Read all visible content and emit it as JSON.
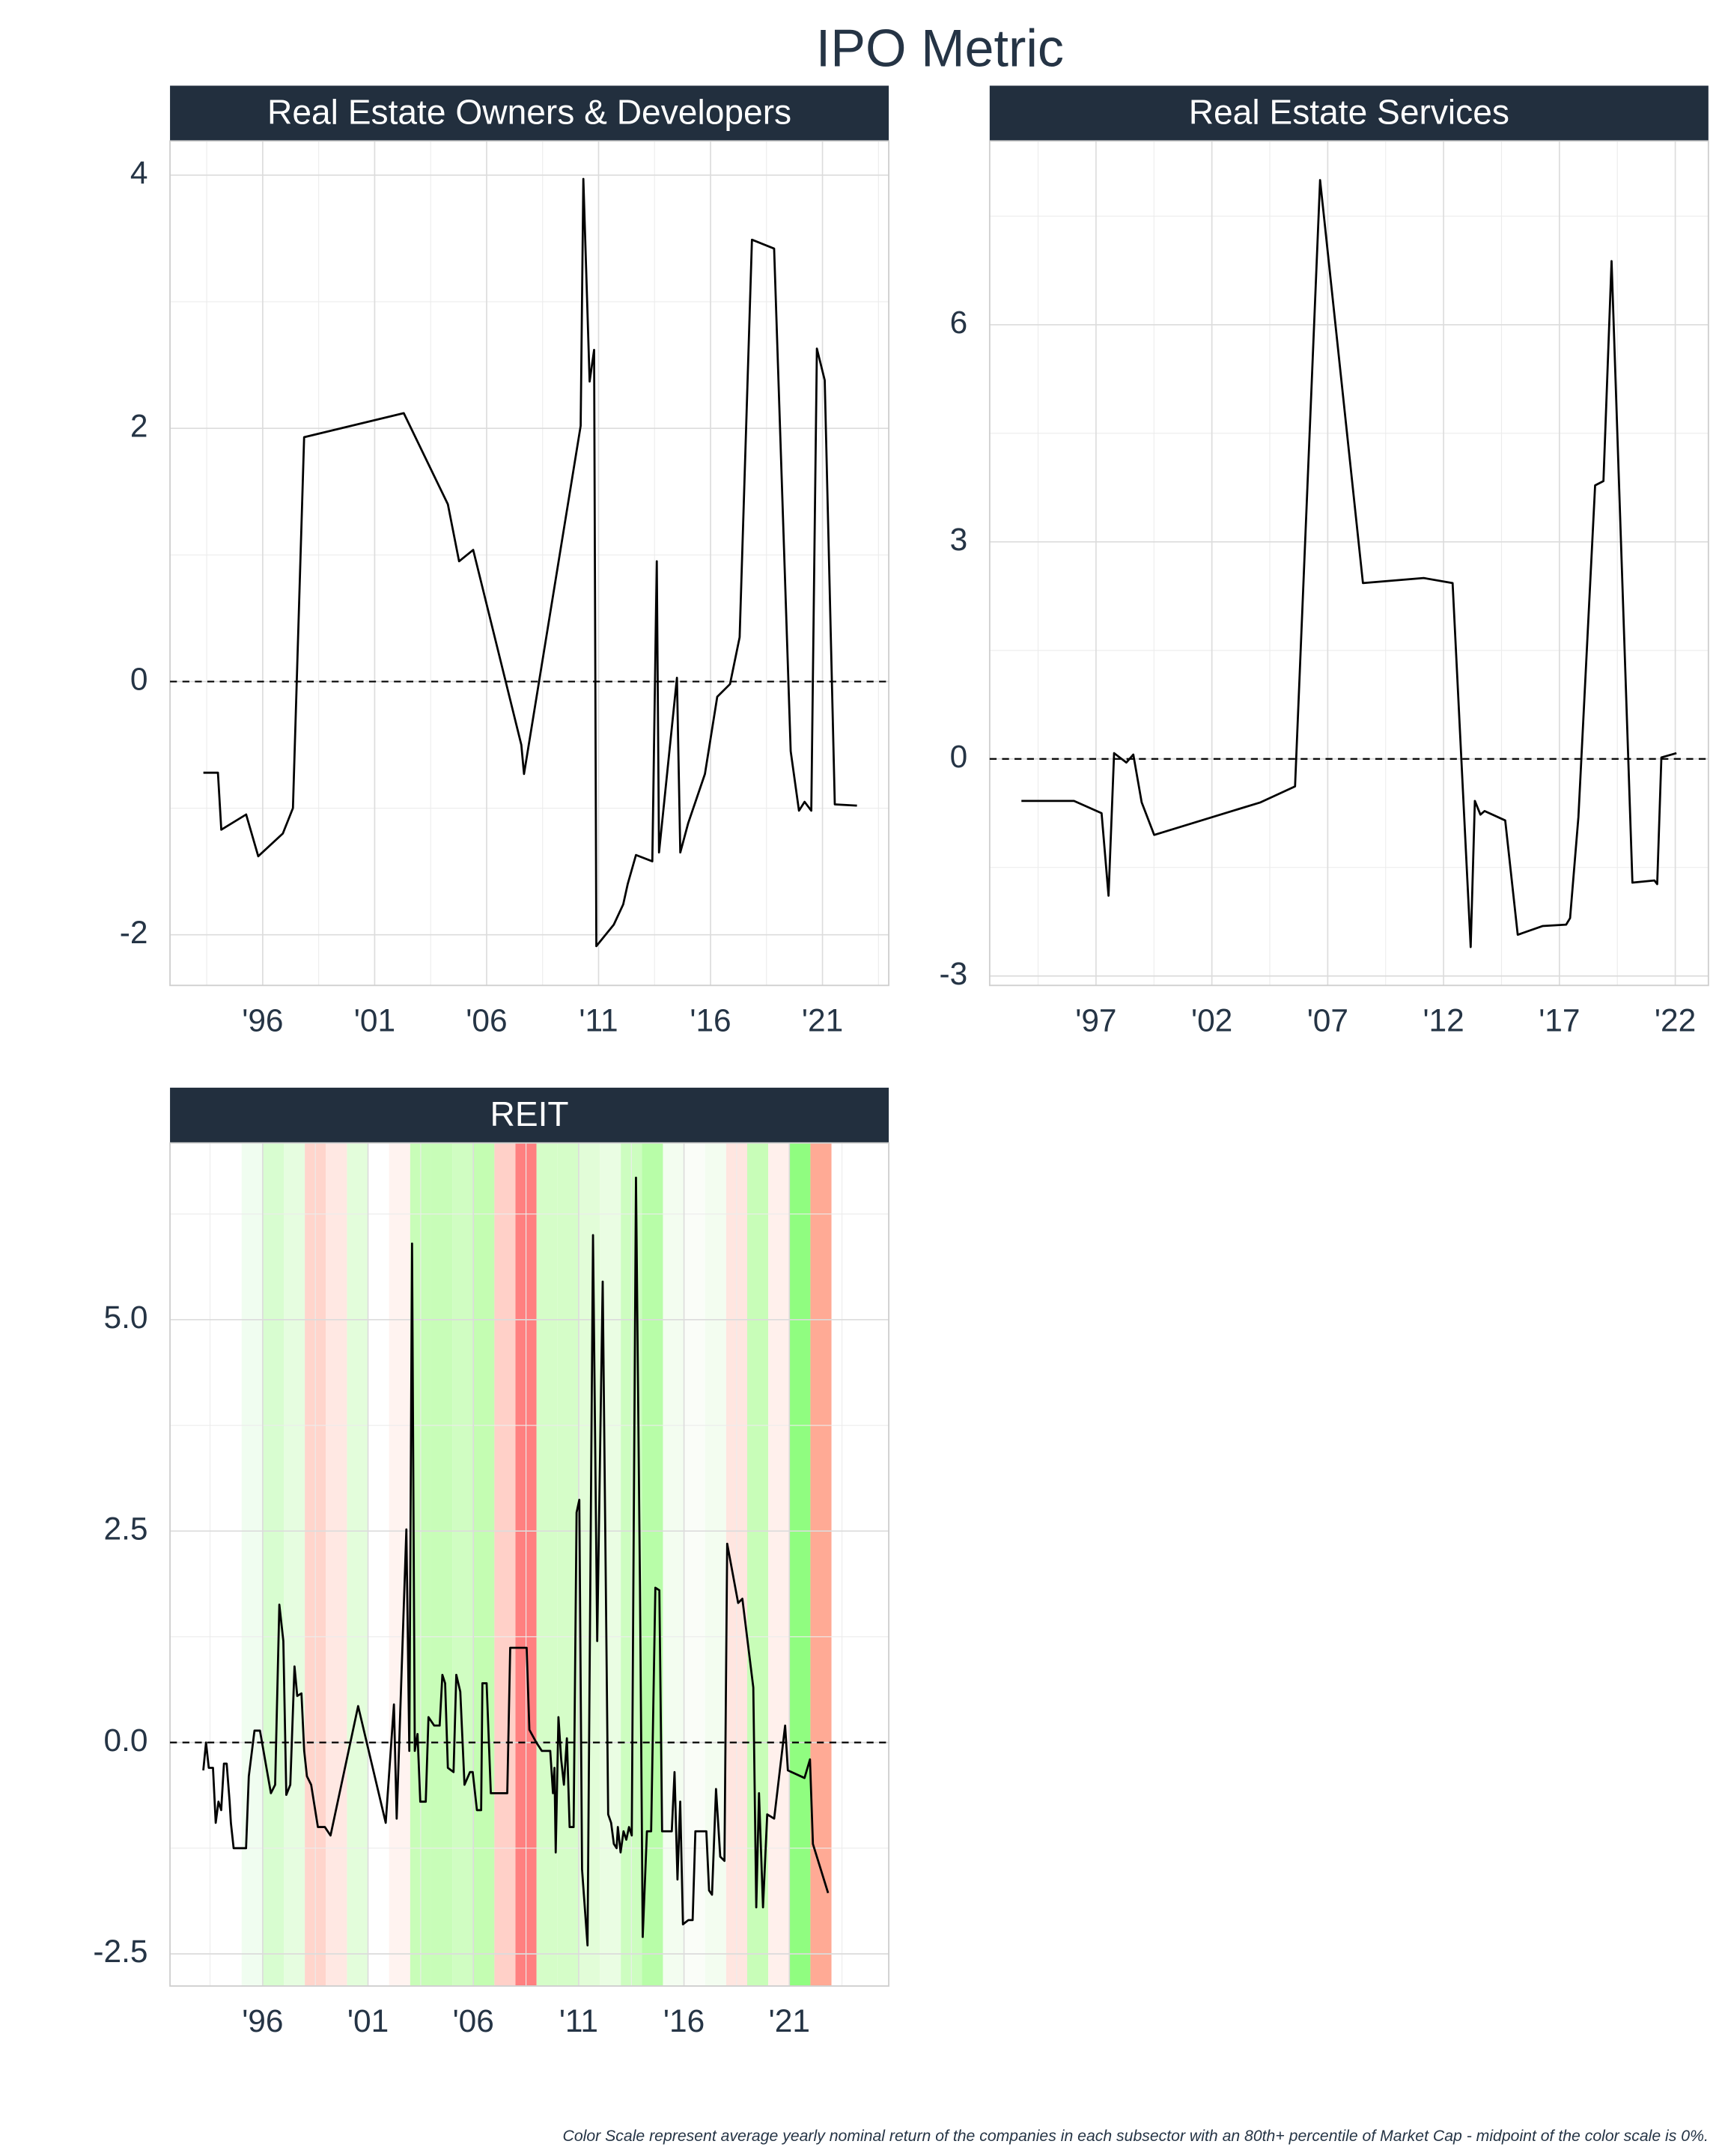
{
  "title": "IPO Metric",
  "caption": "Color Scale represent average yearly nominal return of the companies in each subsector with an 80th+ percentile of Market Cap - midpoint of the color scale is 0%.",
  "chart_data": [
    {
      "type": "line",
      "title": "Real Estate Owners & Developers",
      "color": "#000000",
      "hline": 0,
      "grid": true,
      "xlim": [
        1991.86,
        2023.96
      ],
      "ylim": [
        -2.4,
        4.27
      ],
      "xticks": [
        {
          "value": 1996,
          "label": "'96"
        },
        {
          "value": 2001,
          "label": "'01"
        },
        {
          "value": 2006,
          "label": "'06"
        },
        {
          "value": 2011,
          "label": "'11"
        },
        {
          "value": 2016,
          "label": "'16"
        },
        {
          "value": 2021,
          "label": "'21"
        }
      ],
      "xminor": [
        1993.5,
        1998.5,
        2003.5,
        2008.5,
        2013.5,
        2018.5,
        2023.5
      ],
      "yticks": [
        -2,
        0,
        2,
        4
      ],
      "yminor": [
        -1,
        1,
        3
      ],
      "x": [
        1993.35,
        1994.0,
        1994.15,
        1995.26,
        1995.8,
        1996.9,
        1997.35,
        1997.85,
        2002.3,
        2004.27,
        2004.77,
        2005.4,
        2007.55,
        2007.67,
        2010.2,
        2010.32,
        2010.6,
        2010.8,
        2010.9,
        2011.68,
        2012.1,
        2012.3,
        2012.67,
        2013.4,
        2013.6,
        2013.7,
        2014.5,
        2014.65,
        2015.0,
        2015.75,
        2016.3,
        2016.87,
        2017.3,
        2017.85,
        2018.84,
        2019.58,
        2019.95,
        2020.2,
        2020.5,
        2020.75,
        2021.1,
        2021.55,
        2022.54
      ],
      "values": [
        -0.72,
        -0.72,
        -1.17,
        -1.05,
        -1.38,
        -1.2,
        -1.0,
        1.93,
        2.12,
        1.4,
        0.95,
        1.04,
        -0.5,
        -0.73,
        2.02,
        3.97,
        2.37,
        2.62,
        -2.09,
        -1.92,
        -1.76,
        -1.6,
        -1.37,
        -1.42,
        0.95,
        -1.35,
        0.03,
        -1.35,
        -1.12,
        -0.73,
        -0.12,
        -0.02,
        0.35,
        3.49,
        3.42,
        -0.55,
        -1.02,
        -0.95,
        -1.02,
        2.63,
        2.38,
        -0.97,
        -0.98
      ]
    },
    {
      "type": "line",
      "title": "Real Estate Services",
      "color": "#000000",
      "hline": 0,
      "grid": true,
      "xlim": [
        1992.41,
        2023.43
      ],
      "ylim": [
        -3.13,
        8.54
      ],
      "xticks": [
        {
          "value": 1997,
          "label": "'97"
        },
        {
          "value": 2002,
          "label": "'02"
        },
        {
          "value": 2007,
          "label": "'07"
        },
        {
          "value": 2012,
          "label": "'12"
        },
        {
          "value": 2017,
          "label": "'17"
        },
        {
          "value": 2022,
          "label": "'22"
        }
      ],
      "xminor": [
        1994.5,
        1999.5,
        2004.5,
        2009.5,
        2014.5,
        2019.5
      ],
      "yticks": [
        -3,
        0,
        3,
        6
      ],
      "yminor": [
        -1.5,
        1.5,
        4.5,
        7.5
      ],
      "x": [
        1993.78,
        1996.05,
        1997.24,
        1997.54,
        1997.78,
        1998.31,
        1998.61,
        1998.97,
        1999.51,
        2004.1,
        2005.59,
        2006.67,
        2008.52,
        2011.14,
        2012.39,
        2013.17,
        2013.35,
        2013.59,
        2013.77,
        2014.66,
        2015.2,
        2016.27,
        2017.29,
        2017.46,
        2017.82,
        2018.54,
        2018.9,
        2019.25,
        2020.15,
        2021.1,
        2021.22,
        2021.4,
        2022.05
      ],
      "values": [
        -0.58,
        -0.58,
        -0.75,
        -1.89,
        0.08,
        -0.05,
        0.06,
        -0.6,
        -1.05,
        -0.6,
        -0.38,
        8.0,
        2.43,
        2.5,
        2.43,
        -2.6,
        -0.58,
        -0.77,
        -0.72,
        -0.85,
        -2.43,
        -2.31,
        -2.29,
        -2.2,
        -0.8,
        3.78,
        3.84,
        6.88,
        -1.71,
        -1.68,
        -1.73,
        0.02,
        0.08
      ]
    },
    {
      "type": "line",
      "title": "REIT",
      "color": "#000000",
      "hline": 0,
      "grid": true,
      "xlim": [
        1991.6,
        2025.72
      ],
      "ylim": [
        -2.88,
        7.09
      ],
      "xticks": [
        {
          "value": 1996,
          "label": "'96"
        },
        {
          "value": 2001,
          "label": "'01"
        },
        {
          "value": 2006,
          "label": "'06"
        },
        {
          "value": 2011,
          "label": "'11"
        },
        {
          "value": 2016,
          "label": "'16"
        },
        {
          "value": 2021,
          "label": "'21"
        }
      ],
      "xminor": [
        1993.5,
        1998.5,
        2003.5,
        2008.5,
        2013.5,
        2018.5,
        2023.5
      ],
      "yticks": [
        -2.5,
        {
          "value": 0,
          "label": "0.0"
        },
        2.5,
        {
          "value": 5,
          "label": "5.0"
        }
      ],
      "yminor": [
        -1.25,
        1.25,
        3.75,
        6.25
      ],
      "bands": [
        {
          "start": 1995,
          "end": 1996,
          "color": "#f0fdf0"
        },
        {
          "start": 1996,
          "end": 1997,
          "color": "#d8fdd0"
        },
        {
          "start": 1997,
          "end": 1998,
          "color": "#e6fde0"
        },
        {
          "start": 1998,
          "end": 1999,
          "color": "#ffd5cc"
        },
        {
          "start": 1999,
          "end": 2000,
          "color": "#ffe8e3"
        },
        {
          "start": 2000,
          "end": 2001,
          "color": "#e3fddb"
        },
        {
          "start": 2002,
          "end": 2003,
          "color": "#fff3f0"
        },
        {
          "start": 2003,
          "end": 2004,
          "color": "#c8fdb8"
        },
        {
          "start": 2004,
          "end": 2005,
          "color": "#c8fdb8"
        },
        {
          "start": 2005,
          "end": 2006,
          "color": "#d0fdc2"
        },
        {
          "start": 2006,
          "end": 2007,
          "color": "#c4fdb2"
        },
        {
          "start": 2007,
          "end": 2008,
          "color": "#ffd0c8"
        },
        {
          "start": 2008,
          "end": 2009,
          "color": "#ff8080"
        },
        {
          "start": 2009,
          "end": 2010,
          "color": "#d5fdc8"
        },
        {
          "start": 2010,
          "end": 2011,
          "color": "#d5fdc8"
        },
        {
          "start": 2011,
          "end": 2012,
          "color": "#e2fdd8"
        },
        {
          "start": 2012,
          "end": 2013,
          "color": "#eafde3"
        },
        {
          "start": 2013,
          "end": 2014,
          "color": "#cdfdc0"
        },
        {
          "start": 2014,
          "end": 2015,
          "color": "#b8fda8"
        },
        {
          "start": 2015,
          "end": 2016,
          "color": "#f3fdf0"
        },
        {
          "start": 2016,
          "end": 2017,
          "color": "#fafdf8"
        },
        {
          "start": 2017,
          "end": 2018,
          "color": "#f3fdf0"
        },
        {
          "start": 2018,
          "end": 2019,
          "color": "#ffe6e0"
        },
        {
          "start": 2019,
          "end": 2020,
          "color": "#c8fdb8"
        },
        {
          "start": 2020,
          "end": 2021,
          "color": "#fff0ec"
        },
        {
          "start": 2021,
          "end": 2022,
          "color": "#90fd80"
        },
        {
          "start": 2022,
          "end": 2023,
          "color": "#ffaa95"
        }
      ],
      "x": [
        1993.18,
        1993.31,
        1993.44,
        1993.64,
        1993.77,
        1993.9,
        1994.03,
        1994.16,
        1994.29,
        1994.43,
        1994.49,
        1994.62,
        1995.21,
        1995.34,
        1995.61,
        1995.87,
        1996.39,
        1996.59,
        1996.79,
        1996.98,
        1997.12,
        1997.31,
        1997.51,
        1997.64,
        1997.84,
        1997.97,
        1998.1,
        1998.3,
        1998.62,
        1998.95,
        1999.22,
        2000.53,
        2001.84,
        2002.23,
        2002.36,
        2002.82,
        2002.96,
        2003.09,
        2003.22,
        2003.35,
        2003.48,
        2003.74,
        2003.87,
        2004.14,
        2004.4,
        2004.53,
        2004.66,
        2004.79,
        2005.06,
        2005.19,
        2005.38,
        2005.58,
        2005.84,
        2005.97,
        2006.17,
        2006.37,
        2006.43,
        2006.63,
        2006.83,
        2007.61,
        2007.75,
        2008.53,
        2008.66,
        2008.99,
        2009.25,
        2009.65,
        2009.78,
        2009.85,
        2009.91,
        2010.04,
        2010.17,
        2010.3,
        2010.44,
        2010.57,
        2010.76,
        2010.9,
        2011.03,
        2011.16,
        2011.42,
        2011.68,
        2011.88,
        2012.14,
        2012.4,
        2012.54,
        2012.67,
        2012.8,
        2012.86,
        2012.99,
        2013.13,
        2013.26,
        2013.39,
        2013.52,
        2013.72,
        2013.91,
        2014.04,
        2014.24,
        2014.44,
        2014.64,
        2014.83,
        2014.96,
        2015.42,
        2015.55,
        2015.69,
        2015.82,
        2015.95,
        2016.21,
        2016.41,
        2016.54,
        2017.06,
        2017.19,
        2017.33,
        2017.52,
        2017.72,
        2017.92,
        2018.05,
        2018.57,
        2018.77,
        2019.29,
        2019.43,
        2019.56,
        2019.75,
        2019.95,
        2020.28,
        2020.8,
        2020.93,
        2021.72,
        2021.98,
        2022.12,
        2022.84
      ],
      "values": [
        -0.33,
        0.0,
        -0.3,
        -0.3,
        -0.95,
        -0.7,
        -0.8,
        -0.25,
        -0.25,
        -0.7,
        -0.95,
        -1.25,
        -1.25,
        -0.4,
        0.14,
        0.14,
        -0.6,
        -0.5,
        1.63,
        1.2,
        -0.62,
        -0.5,
        0.9,
        0.55,
        0.58,
        -0.1,
        -0.4,
        -0.5,
        -1.0,
        -1.0,
        -1.1,
        0.43,
        -0.95,
        0.45,
        -0.9,
        2.52,
        -0.1,
        5.9,
        -0.1,
        0.1,
        -0.7,
        -0.7,
        0.3,
        0.2,
        0.2,
        0.8,
        0.7,
        -0.3,
        -0.35,
        0.8,
        0.6,
        -0.5,
        -0.35,
        -0.35,
        -0.8,
        -0.8,
        0.7,
        0.7,
        -0.6,
        -0.6,
        1.12,
        1.12,
        0.15,
        0.0,
        -0.1,
        -0.1,
        -0.6,
        -0.3,
        -1.3,
        0.3,
        -0.2,
        -0.5,
        0.05,
        -1.0,
        -1.0,
        2.72,
        2.87,
        -1.5,
        -2.4,
        6.0,
        1.2,
        5.45,
        -0.85,
        -0.95,
        -1.2,
        -1.25,
        -1.0,
        -1.3,
        -1.05,
        -1.15,
        -1.0,
        -1.1,
        6.68,
        1.85,
        -2.3,
        -1.05,
        -1.05,
        1.83,
        1.8,
        -1.05,
        -1.05,
        -0.35,
        -1.62,
        -0.7,
        -2.15,
        -2.1,
        -2.1,
        -1.05,
        -1.05,
        -1.75,
        -1.8,
        -0.55,
        -1.35,
        -1.4,
        2.35,
        1.65,
        1.7,
        0.65,
        -1.95,
        -0.6,
        -1.95,
        -0.85,
        -0.9,
        0.2,
        -0.33,
        -0.42,
        -0.2,
        -1.2,
        -1.78
      ]
    }
  ]
}
